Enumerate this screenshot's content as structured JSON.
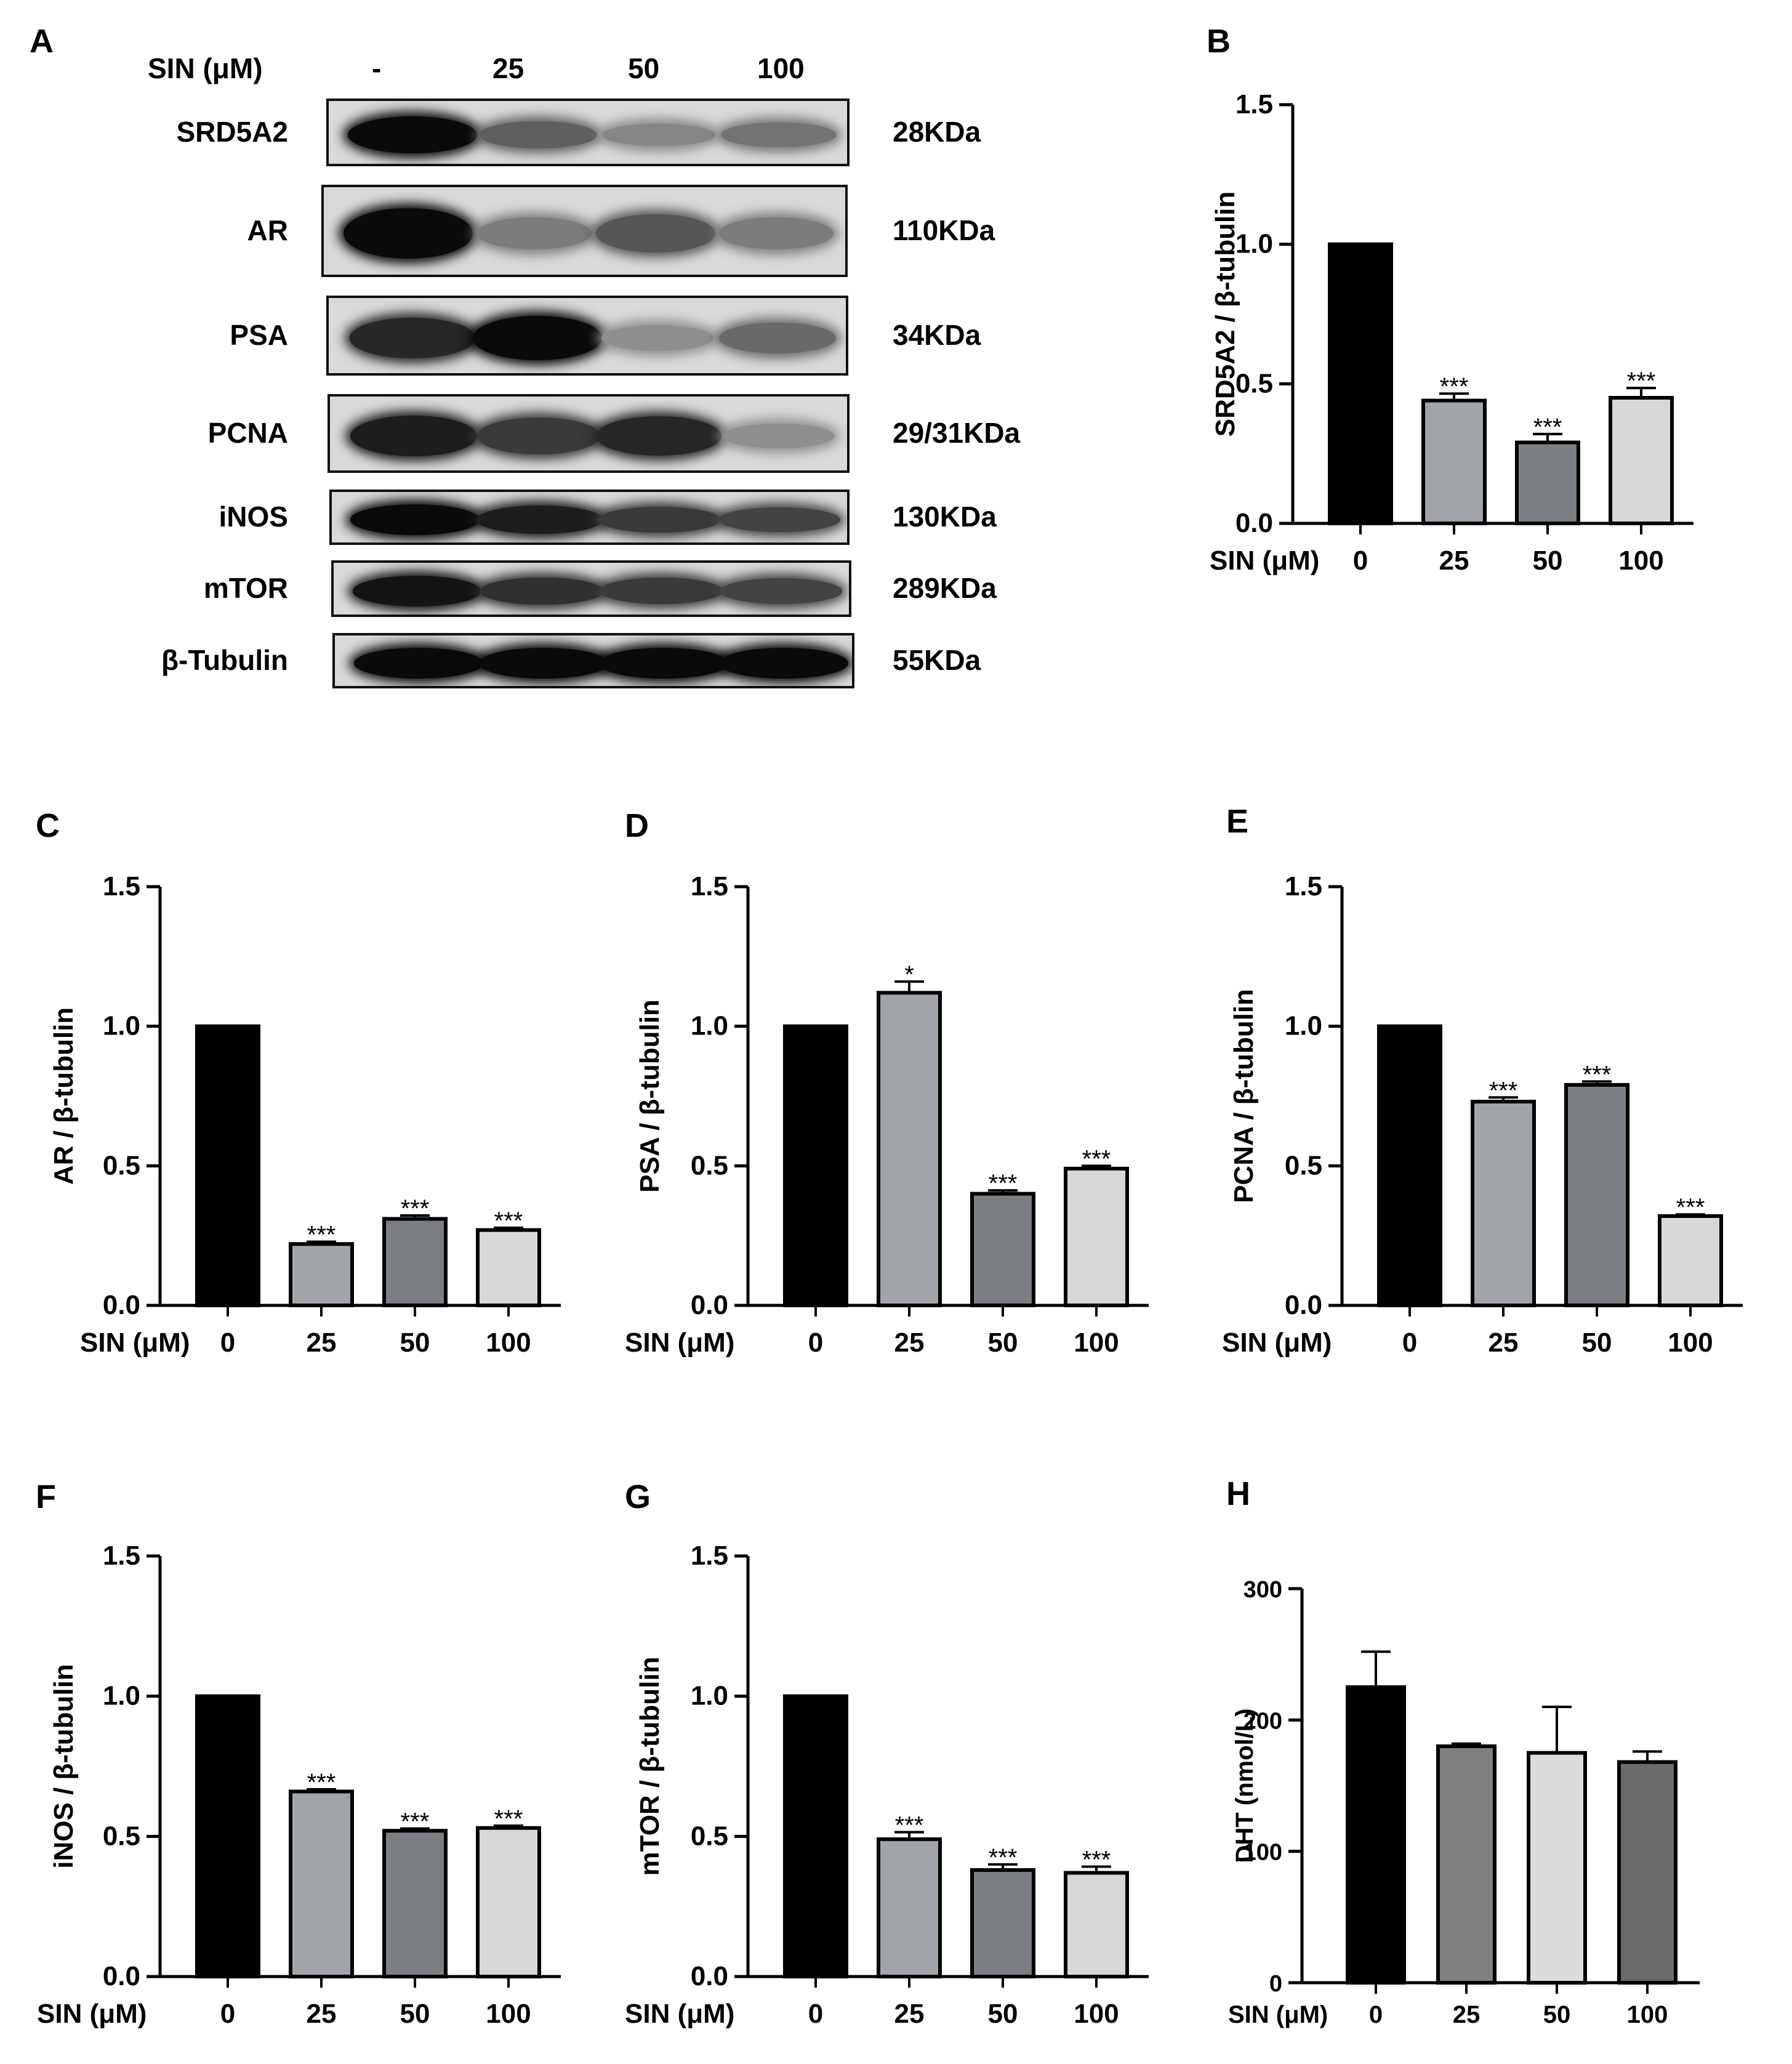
{
  "panels": [
    "A",
    "B",
    "C",
    "D",
    "E",
    "F",
    "G",
    "H"
  ],
  "blot": {
    "header_label": "SIN (μM)",
    "lanes": [
      "-",
      "25",
      "50",
      "100"
    ],
    "rows": [
      {
        "name": "SRD5A2",
        "kda": "28KDa",
        "intensity": [
          1.0,
          0.55,
          0.35,
          0.45
        ]
      },
      {
        "name": "AR",
        "kda": "110KDa",
        "intensity": [
          1.0,
          0.4,
          0.6,
          0.4
        ]
      },
      {
        "name": "PSA",
        "kda": "34KDa",
        "intensity": [
          0.85,
          1.0,
          0.3,
          0.5
        ]
      },
      {
        "name": "PCNA",
        "kda": "29/31KDa",
        "intensity": [
          0.9,
          0.75,
          0.85,
          0.3
        ]
      },
      {
        "name": "iNOS",
        "kda": "130KDa",
        "intensity": [
          1.0,
          0.9,
          0.75,
          0.7
        ]
      },
      {
        "name": "mTOR",
        "kda": "289KDa",
        "intensity": [
          0.95,
          0.8,
          0.75,
          0.7
        ]
      },
      {
        "name": "β-Tubulin",
        "kda": "55KDa",
        "intensity": [
          1.0,
          1.0,
          1.0,
          1.0
        ]
      }
    ]
  },
  "colors": {
    "c0": "#000000",
    "c25": "#a1a4a8",
    "c50": "#7b7e82",
    "c100": "#d8d8d8",
    "h25": "#7f7f7f",
    "h50": "#dcdcdc",
    "h100": "#6b6b6b"
  },
  "chart_data": [
    {
      "panel": "B",
      "type": "bar",
      "xlabel": "SIN (μM)",
      "ylabel": "SRD5A2 / β-tubulin",
      "categories": [
        "0",
        "25",
        "50",
        "100"
      ],
      "values": [
        1.0,
        0.44,
        0.29,
        0.45
      ],
      "errors": [
        0,
        0.025,
        0.03,
        0.035
      ],
      "sig": [
        "",
        "***",
        "***",
        "***"
      ],
      "ylim": [
        0,
        1.5
      ],
      "yticks": [
        "0.0",
        "0.5",
        "1.0",
        "1.5"
      ]
    },
    {
      "panel": "C",
      "type": "bar",
      "xlabel": "SIN (μM)",
      "ylabel": "AR / β-tubulin",
      "categories": [
        "0",
        "25",
        "50",
        "100"
      ],
      "values": [
        1.0,
        0.22,
        0.31,
        0.27
      ],
      "errors": [
        0,
        0.008,
        0.012,
        0.008
      ],
      "sig": [
        "",
        "***",
        "***",
        "***"
      ],
      "ylim": [
        0,
        1.5
      ],
      "yticks": [
        "0.0",
        "0.5",
        "1.0",
        "1.5"
      ]
    },
    {
      "panel": "D",
      "type": "bar",
      "xlabel": "SIN (μM)",
      "ylabel": "PSA / β-tubulin",
      "categories": [
        "0",
        "25",
        "50",
        "100"
      ],
      "values": [
        1.0,
        1.12,
        0.4,
        0.49
      ],
      "errors": [
        0,
        0.04,
        0.012,
        0.01
      ],
      "sig": [
        "",
        "*",
        "***",
        "***"
      ],
      "ylim": [
        0,
        1.5
      ],
      "yticks": [
        "0.0",
        "0.5",
        "1.0",
        "1.5"
      ]
    },
    {
      "panel": "E",
      "type": "bar",
      "xlabel": "SIN (μM)",
      "ylabel": "PCNA / β-tubulin",
      "categories": [
        "0",
        "25",
        "50",
        "100"
      ],
      "values": [
        1.0,
        0.73,
        0.79,
        0.32
      ],
      "errors": [
        0,
        0.015,
        0.012,
        0.006
      ],
      "sig": [
        "",
        "***",
        "***",
        "***"
      ],
      "ylim": [
        0,
        1.5
      ],
      "yticks": [
        "0.0",
        "0.5",
        "1.0",
        "1.5"
      ]
    },
    {
      "panel": "F",
      "type": "bar",
      "xlabel": "SIN (μM)",
      "ylabel": "iNOS / β-tubulin",
      "categories": [
        "0",
        "25",
        "50",
        "100"
      ],
      "values": [
        1.0,
        0.66,
        0.52,
        0.53
      ],
      "errors": [
        0,
        0.008,
        0.008,
        0.008
      ],
      "sig": [
        "",
        "***",
        "***",
        "***"
      ],
      "ylim": [
        0,
        1.5
      ],
      "yticks": [
        "0.0",
        "0.5",
        "1.0",
        "1.5"
      ]
    },
    {
      "panel": "G",
      "type": "bar",
      "xlabel": "SIN (μM)",
      "ylabel": "mTOR / β-tubulin",
      "categories": [
        "0",
        "25",
        "50",
        "100"
      ],
      "values": [
        1.0,
        0.49,
        0.38,
        0.37
      ],
      "errors": [
        0,
        0.025,
        0.02,
        0.022
      ],
      "sig": [
        "",
        "***",
        "***",
        "***"
      ],
      "ylim": [
        0,
        1.5
      ],
      "yticks": [
        "0.0",
        "0.5",
        "1.0",
        "1.5"
      ]
    },
    {
      "panel": "H",
      "type": "bar",
      "xlabel": "SIN (μM)",
      "ylabel": "DHT (nmol/L)",
      "categories": [
        "0",
        "25",
        "50",
        "100"
      ],
      "values": [
        225,
        180,
        175,
        168
      ],
      "errors": [
        27,
        2,
        35,
        8
      ],
      "sig": [
        "",
        "",
        "",
        ""
      ],
      "ylim": [
        0,
        300
      ],
      "yticks": [
        "0",
        "100",
        "200",
        "300"
      ]
    }
  ]
}
